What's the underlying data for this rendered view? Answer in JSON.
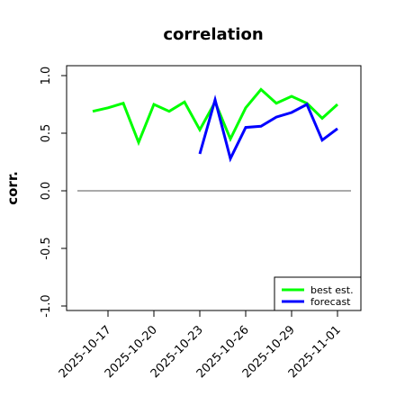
{
  "chart_data": {
    "type": "line",
    "title": "correlation",
    "ylabel": "corr.",
    "xlabel": "",
    "ylim": [
      -1.0,
      1.0
    ],
    "y_ticks": [
      -1.0,
      -0.5,
      0.0,
      0.5,
      1.0
    ],
    "y_tick_labels": [
      "-1.0",
      "-0.5",
      "0.0",
      "0.5",
      "1.0"
    ],
    "x_tick_dates": [
      "2025-10-17",
      "2025-10-20",
      "2025-10-23",
      "2025-10-26",
      "2025-10-29",
      "2025-11-01"
    ],
    "x_tick_labels": [
      "2025-10-17",
      "2025-10-20",
      "2025-10-23",
      "2025-10-26",
      "2025-10-29",
      "2025-11-01"
    ],
    "x_tick_label_colors": [
      "#000000",
      "#000000",
      "#1a8a1a",
      "#000000",
      "#000000",
      "#000000"
    ],
    "hline": 0.0,
    "grid": false,
    "legend_position": "bottom-right",
    "series": [
      {
        "name": "best est.",
        "color": "#00ff00",
        "x": [
          "2025-10-16",
          "2025-10-17",
          "2025-10-18",
          "2025-10-19",
          "2025-10-20",
          "2025-10-21",
          "2025-10-22",
          "2025-10-23",
          "2025-10-24",
          "2025-10-25",
          "2025-10-26",
          "2025-10-27",
          "2025-10-28",
          "2025-10-29",
          "2025-10-30",
          "2025-10-31",
          "2025-11-01"
        ],
        "values": [
          0.69,
          0.72,
          0.76,
          0.42,
          0.75,
          0.69,
          0.77,
          0.53,
          0.77,
          0.45,
          0.72,
          0.88,
          0.76,
          0.82,
          0.76,
          0.63,
          0.75
        ]
      },
      {
        "name": "forecast",
        "color": "#0000ff",
        "x": [
          "2025-10-23",
          "2025-10-24",
          "2025-10-25",
          "2025-10-26",
          "2025-10-27",
          "2025-10-28",
          "2025-10-29",
          "2025-10-30",
          "2025-10-31",
          "2025-11-01"
        ],
        "values": [
          0.32,
          0.79,
          0.28,
          0.55,
          0.56,
          0.64,
          0.68,
          0.75,
          0.44,
          0.54
        ]
      }
    ]
  }
}
